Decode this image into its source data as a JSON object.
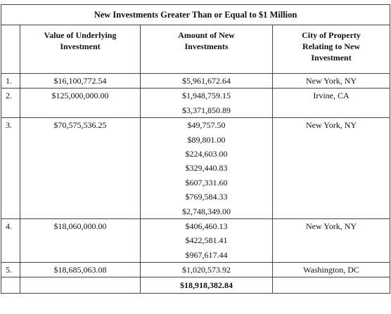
{
  "table": {
    "title": "New Investments Greater Than or Equal to $1 Million",
    "headers": {
      "col1": "",
      "col2": [
        "Value of Underlying",
        "Investment"
      ],
      "col3": [
        "Amount of New",
        "Investments"
      ],
      "col4": [
        "City of Property",
        "Relating to New",
        "Investment"
      ]
    },
    "rows": [
      {
        "num": "1.",
        "value": "$16,100,772.54",
        "amounts": [
          "$5,961,672.64"
        ],
        "city": "New York, NY"
      },
      {
        "num": "2.",
        "value": "$125,000,000.00",
        "amounts": [
          "$1,948,759.15",
          "$3,371,850.89"
        ],
        "city": "Irvine, CA"
      },
      {
        "num": "3.",
        "value": "$70,575,536.25",
        "amounts": [
          "$49,757.50",
          "$89,801.00",
          "$224,603.00",
          "$329,440.83",
          "$607,331.60",
          "$769,584.33",
          "$2,748,349.00"
        ],
        "city": "New York, NY"
      },
      {
        "num": "4.",
        "value": "$18,060,000.00",
        "amounts": [
          "$406,460.13",
          "$422,581.41",
          "$967,617.44"
        ],
        "city": "New York, NY"
      },
      {
        "num": "5.",
        "value": "$18,685,063.08",
        "amounts": [
          "$1,020,573.92"
        ],
        "city": "Washington, DC"
      }
    ],
    "total": "$18,918,382.84"
  }
}
